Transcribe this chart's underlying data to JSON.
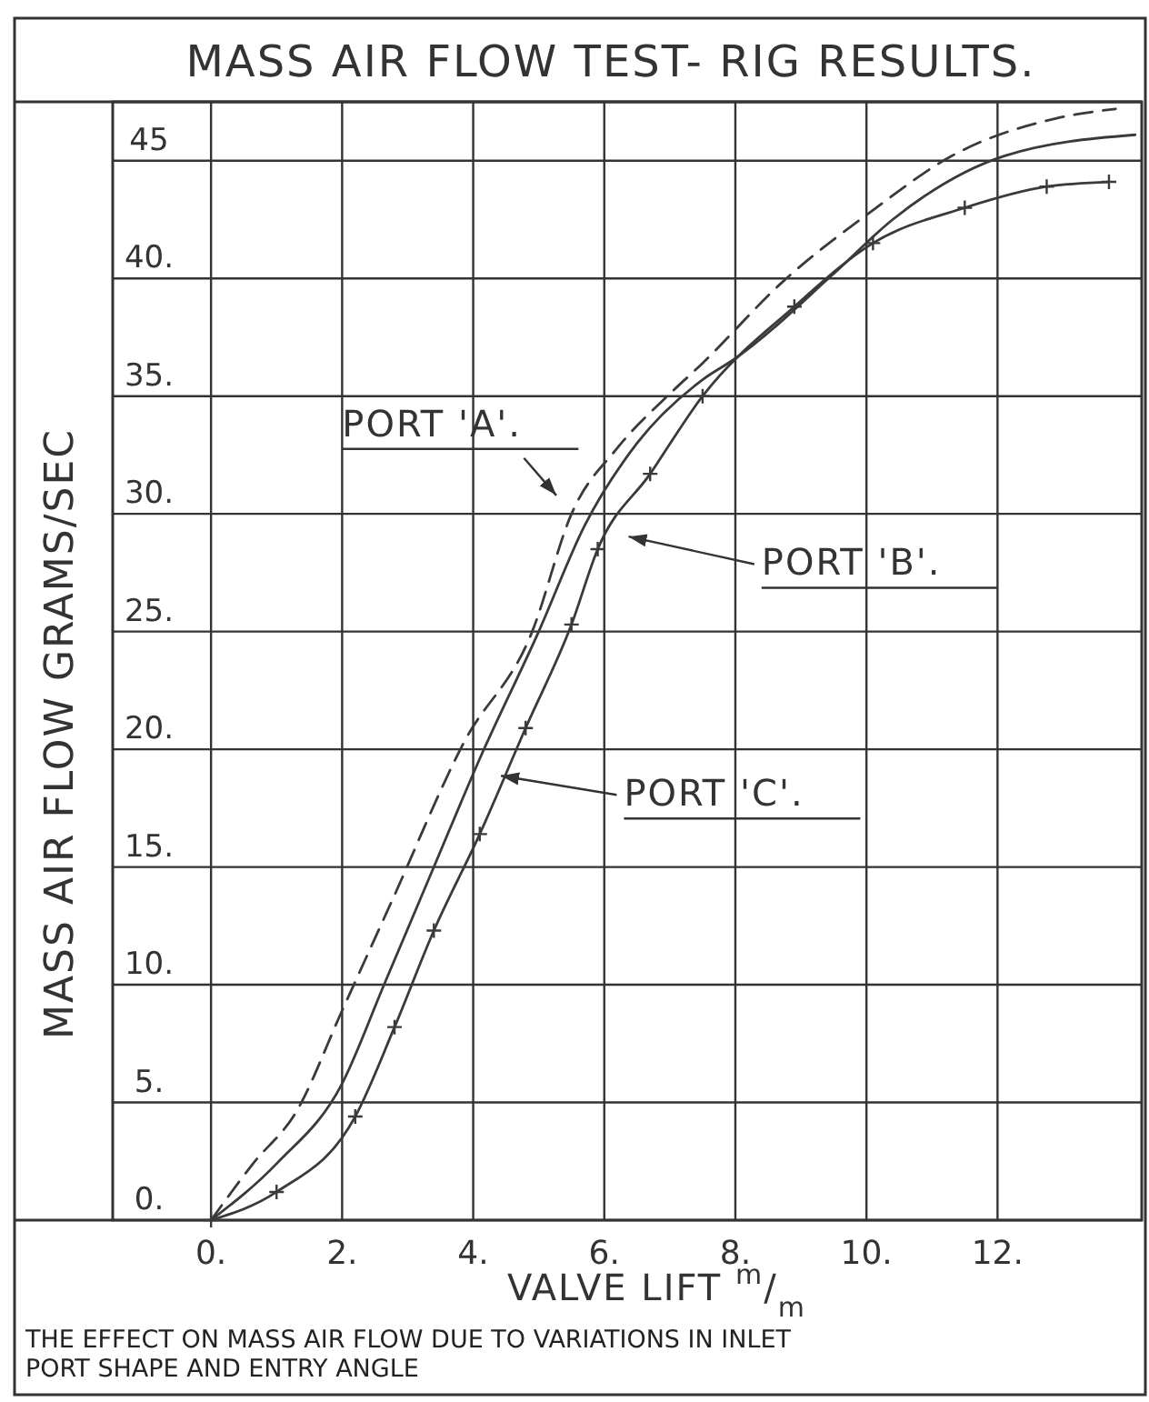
{
  "chart_data": {
    "type": "line",
    "title": "MASS AIR FLOW TEST- RIG RESULTS.",
    "xlabel": "VALVE LIFT $^{m}$/$_{m}$",
    "ylabel": "MASS AIR FLOW GRAMS/SEC",
    "annotations": [
      "THE EFFECT ON MASS AIR FLOW DUE TO VARIATIONS IN INLET PORT SHAPE AND ENTRY ANGLE"
    ],
    "xlim": [
      -1.5,
      14.2
    ],
    "ylim": [
      0,
      47.5
    ],
    "xticks": [
      {
        "value": 0,
        "label": "0."
      },
      {
        "value": 2,
        "label": "2."
      },
      {
        "value": 4,
        "label": "4."
      },
      {
        "value": 6,
        "label": "6."
      },
      {
        "value": 8,
        "label": "8."
      },
      {
        "value": 10,
        "label": "10."
      },
      {
        "value": 12,
        "label": "12."
      }
    ],
    "yticks": [
      {
        "value": 0,
        "label": "0."
      },
      {
        "value": 5,
        "label": "5."
      },
      {
        "value": 10,
        "label": "10."
      },
      {
        "value": 15,
        "label": "15."
      },
      {
        "value": 20,
        "label": "20."
      },
      {
        "value": 25,
        "label": "25."
      },
      {
        "value": 30,
        "label": "30."
      },
      {
        "value": 35,
        "label": "35."
      },
      {
        "value": 40,
        "label": "40."
      },
      45
    ],
    "grid": true,
    "legend": "center",
    "series": [
      {
        "name": "PORT 'A'.",
        "color": "#3a3a3a",
        "line_style": "dashed",
        "marker": "none",
        "x": [
          0,
          0.64,
          1.3,
          2.0,
          2.75,
          3.86,
          4.9,
          5.5,
          6.2,
          7.0,
          7.5,
          8.7,
          10.1,
          11.3,
          12.9,
          13.8
        ],
        "values": [
          0,
          2.4,
          4.6,
          8.9,
          13.5,
          20.3,
          25,
          30,
          32.8,
          35.1,
          36.4,
          39.8,
          42.9,
          45.2,
          46.8,
          47.2
        ]
      },
      {
        "name": "PORT 'B'.",
        "color": "#3a3a3a",
        "line_style": "solid",
        "marker": "cross",
        "x": [
          0,
          1,
          2.2,
          2.8,
          3.4,
          4.1,
          4.8,
          5.5,
          5.9,
          6.7,
          7.5,
          8.9,
          10.1,
          11.5,
          12.75,
          13.7
        ],
        "values": [
          0,
          1.2,
          4.4,
          8.2,
          12.3,
          16.4,
          20.9,
          25.3,
          28.5,
          31.7,
          35,
          38.8,
          41.5,
          43.0,
          43.9,
          44.1
        ]
      },
      {
        "name": "PORT 'C'.",
        "color": "#3a3a3a",
        "line_style": "solid",
        "marker": "none",
        "x": [
          0,
          1,
          2,
          2.64,
          3.4,
          4.1,
          5.0,
          5.7,
          6.5,
          7.5,
          8.0,
          9.5,
          10.4,
          12.1,
          14.1
        ],
        "values": [
          0,
          2.4,
          5.8,
          10,
          15,
          19.6,
          25,
          29.5,
          33,
          35.7,
          36.6,
          40.2,
          42.5,
          45.2,
          46.1
        ]
      }
    ]
  }
}
